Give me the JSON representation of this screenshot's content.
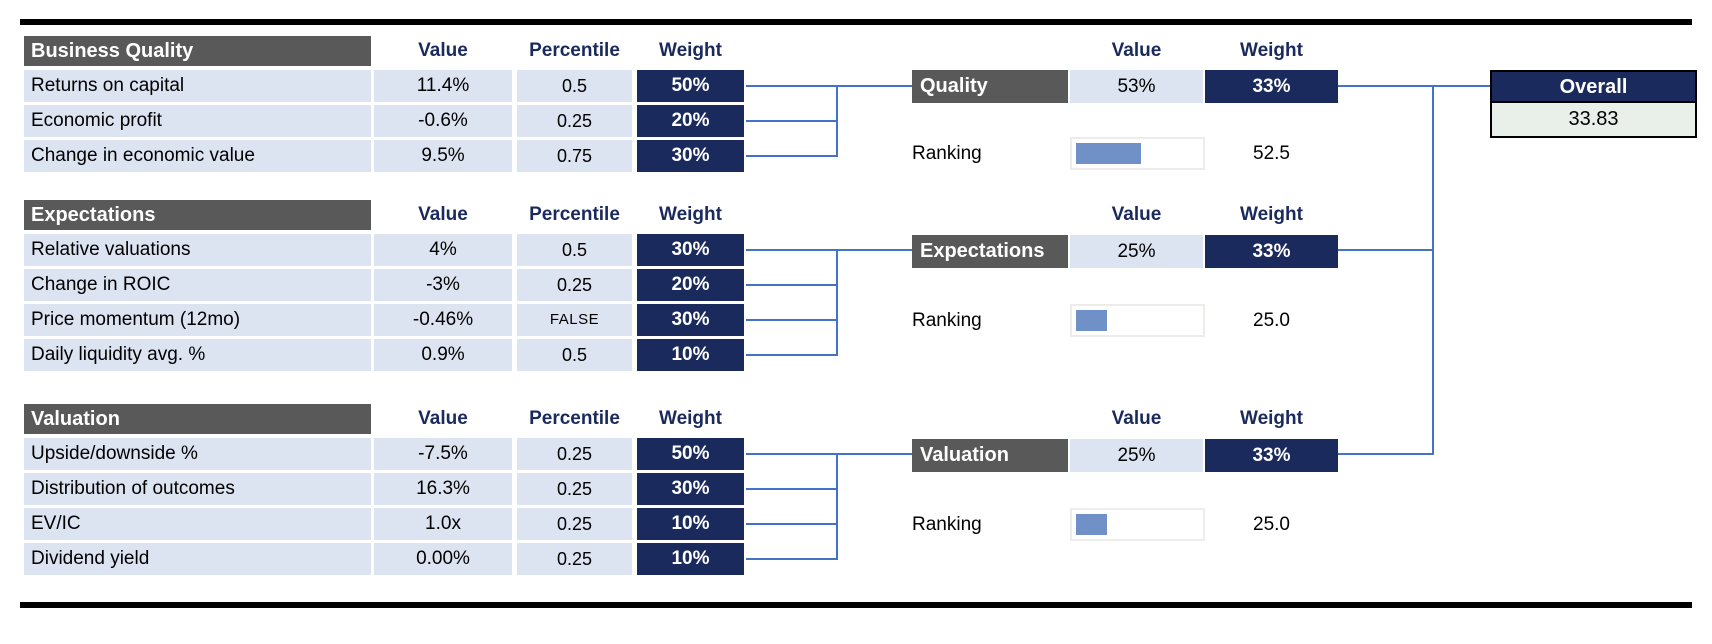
{
  "colors": {
    "navy": "#1a2a5c",
    "gray": "#595959",
    "rowbg": "#dce3f1",
    "barfill": "#7090c8",
    "conn": "#4472c4",
    "overallbg": "#e9efe9",
    "rule": "#000000"
  },
  "factor_tables": [
    {
      "title": "Business Quality",
      "columns": [
        "Value",
        "Percentile",
        "Weight"
      ],
      "rows": [
        {
          "label": "Returns on capital",
          "value": "11.4%",
          "percentile": "0.5",
          "weight": "50%"
        },
        {
          "label": "Economic profit",
          "value": "-0.6%",
          "percentile": "0.25",
          "weight": "20%"
        },
        {
          "label": "Change in economic value",
          "value": "9.5%",
          "percentile": "0.75",
          "weight": "30%"
        }
      ]
    },
    {
      "title": "Expectations",
      "columns": [
        "Value",
        "Percentile",
        "Weight"
      ],
      "rows": [
        {
          "label": "Relative valuations",
          "value": "4%",
          "percentile": "0.5",
          "weight": "30%"
        },
        {
          "label": "Change in ROIC",
          "value": "-3%",
          "percentile": "0.25",
          "weight": "20%"
        },
        {
          "label": "Price momentum (12mo)",
          "value": "-0.46%",
          "percentile": "FALSE",
          "weight": "30%"
        },
        {
          "label": "Daily liquidity avg. %",
          "value": "0.9%",
          "percentile": "0.5",
          "weight": "10%"
        }
      ]
    },
    {
      "title": "Valuation",
      "columns": [
        "Value",
        "Percentile",
        "Weight"
      ],
      "rows": [
        {
          "label": "Upside/downside %",
          "value": "-7.5%",
          "percentile": "0.25",
          "weight": "50%"
        },
        {
          "label": "Distribution of outcomes",
          "value": "16.3%",
          "percentile": "0.25",
          "weight": "30%"
        },
        {
          "label": "EV/IC",
          "value": "1.0x",
          "percentile": "0.25",
          "weight": "10%"
        },
        {
          "label": "Dividend yield",
          "value": "0.00%",
          "percentile": "0.25",
          "weight": "10%"
        }
      ]
    }
  ],
  "summaries": [
    {
      "label": "Quality",
      "columns": [
        "Value",
        "Weight"
      ],
      "value": "53%",
      "weight": "33%",
      "ranking_label": "Ranking",
      "ranking_display": "52.5",
      "ranking_pct": 52.5
    },
    {
      "label": "Expectations",
      "columns": [
        "Value",
        "Weight"
      ],
      "value": "25%",
      "weight": "33%",
      "ranking_label": "Ranking",
      "ranking_display": "25.0",
      "ranking_pct": 25
    },
    {
      "label": "Valuation",
      "columns": [
        "Value",
        "Weight"
      ],
      "value": "25%",
      "weight": "33%",
      "ranking_label": "Ranking",
      "ranking_display": "25.0",
      "ranking_pct": 25
    }
  ],
  "overall": {
    "label": "Overall",
    "value": "33.83"
  }
}
